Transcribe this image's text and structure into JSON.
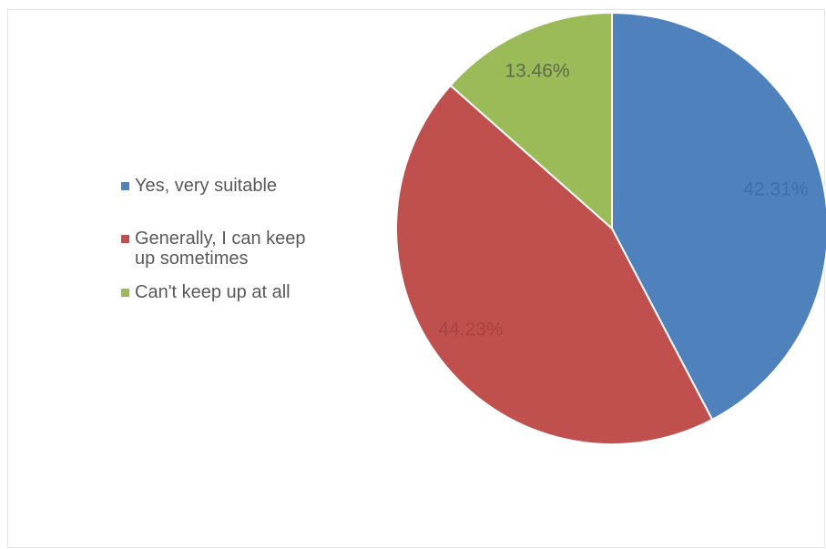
{
  "chart_data": {
    "type": "pie",
    "title": "",
    "legend_position": "left",
    "slices": [
      {
        "name": "Yes, very suitable",
        "value": 42.31,
        "label": "42.31%",
        "color": "#4f81bd",
        "label_color": "#3f6ea8"
      },
      {
        "name": "Generally, I can keep up sometimes",
        "value": 44.23,
        "label": "44.23%",
        "color": "#c0504d",
        "label_color": "#a9433f"
      },
      {
        "name": "Can't keep up at all",
        "value": 13.46,
        "label": "13.46%",
        "color": "#9bbb59",
        "label_color": "#5f6b4d"
      }
    ]
  }
}
